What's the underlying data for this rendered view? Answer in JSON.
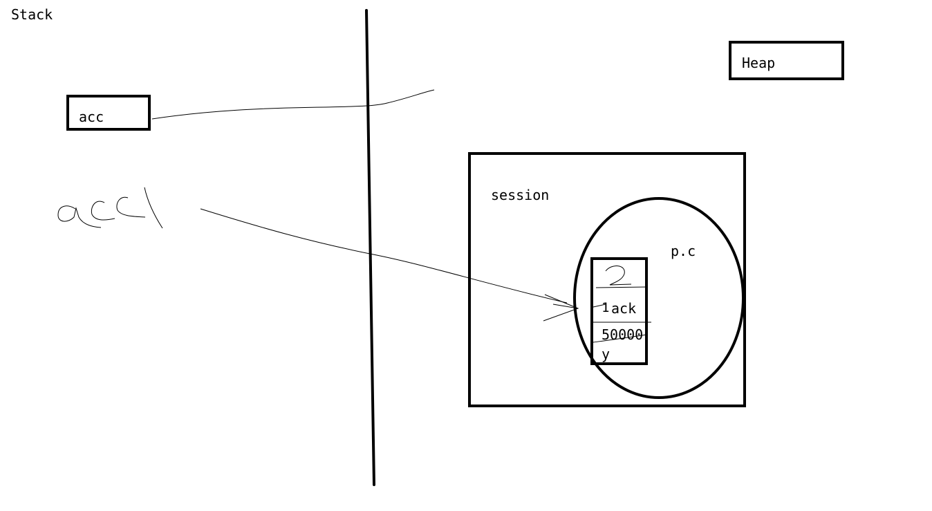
{
  "labels": {
    "stack": "Stack",
    "heap": "Heap",
    "session": "session",
    "persistence_context": "p.c"
  },
  "stack_vars": {
    "first": "acc",
    "second_handwritten": "acc1"
  },
  "entity": {
    "id": "2",
    "first_index": "1",
    "name": "ack",
    "amount": "50000",
    "flag": "y"
  },
  "colors": {
    "ink": "#000000",
    "background": "#ffffff"
  }
}
